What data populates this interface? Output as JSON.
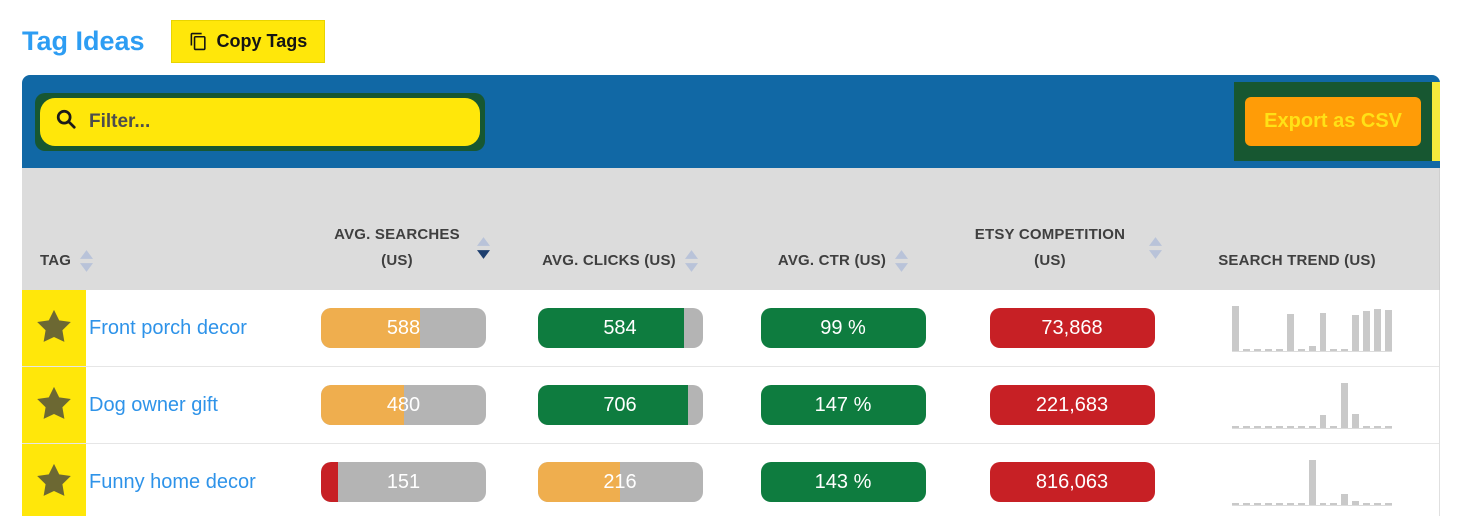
{
  "page": {
    "title": "Tag Ideas",
    "copy_tags_label": "Copy Tags"
  },
  "toolbar": {
    "filter_placeholder": "Filter...",
    "export_label": "Export as CSV"
  },
  "table": {
    "columns": [
      {
        "id": "tag",
        "label": "TAG",
        "sortable": true,
        "sort": "none"
      },
      {
        "id": "avg-searches",
        "label": "AVG. SEARCHES (US)",
        "sortable": true,
        "sort": "desc"
      },
      {
        "id": "avg-clicks",
        "label": "AVG. CLICKS (US)",
        "sortable": true,
        "sort": "none"
      },
      {
        "id": "avg-ctr",
        "label": "AVG. CTR (US)",
        "sortable": true,
        "sort": "none"
      },
      {
        "id": "competition",
        "label": "ETSY COMPETITION (US)",
        "sortable": true,
        "sort": "none"
      },
      {
        "id": "trend",
        "label": "SEARCH TREND (US)",
        "sortable": false,
        "sort": "none"
      }
    ],
    "rows": [
      {
        "tag": "Front porch decor",
        "avg_searches": {
          "value": "588",
          "fill_pct": 60,
          "color": "amber"
        },
        "avg_clicks": {
          "value": "584",
          "fill_pct": 89,
          "color": "green"
        },
        "avg_ctr": {
          "value": "99 %",
          "color": "green"
        },
        "competition": {
          "value": "73,868",
          "color": "red"
        },
        "trend": [
          100,
          4,
          2,
          2,
          2,
          83,
          2,
          12,
          85,
          3,
          2,
          79,
          88,
          93,
          90
        ]
      },
      {
        "tag": "Dog owner gift",
        "avg_searches": {
          "value": "480",
          "fill_pct": 50,
          "color": "amber"
        },
        "avg_clicks": {
          "value": "706",
          "fill_pct": 91,
          "color": "green"
        },
        "avg_ctr": {
          "value": "147 %",
          "color": "green"
        },
        "competition": {
          "value": "221,683",
          "color": "red"
        },
        "trend": [
          2,
          2,
          2,
          2,
          2,
          2,
          2,
          2,
          28,
          2,
          100,
          31,
          2,
          2,
          2
        ]
      },
      {
        "tag": "Funny home decor",
        "avg_searches": {
          "value": "151",
          "fill_pct": 10,
          "color": "red"
        },
        "avg_clicks": {
          "value": "216",
          "fill_pct": 50,
          "color": "amber"
        },
        "avg_ctr": {
          "value": "143 %",
          "color": "green"
        },
        "competition": {
          "value": "816,063",
          "color": "red"
        },
        "trend": [
          2,
          2,
          2,
          2,
          2,
          2,
          2,
          100,
          2,
          2,
          24,
          8,
          2,
          2,
          2
        ]
      }
    ]
  },
  "chart_data": {
    "type": "bar",
    "note": "search trend sparklines per tag, 15 periods, relative heights 0-100",
    "series": [
      {
        "name": "Front porch decor",
        "values": [
          100,
          4,
          2,
          2,
          2,
          83,
          2,
          12,
          85,
          3,
          2,
          79,
          88,
          93,
          90
        ]
      },
      {
        "name": "Dog owner gift",
        "values": [
          2,
          2,
          2,
          2,
          2,
          2,
          2,
          2,
          28,
          2,
          100,
          31,
          2,
          2,
          2
        ]
      },
      {
        "name": "Funny home decor",
        "values": [
          2,
          2,
          2,
          2,
          2,
          2,
          2,
          100,
          2,
          2,
          24,
          8,
          2,
          2,
          2
        ]
      }
    ]
  },
  "colors": {
    "toolbar_blue": "#1168a5",
    "title_blue": "#2d9df3",
    "link_blue": "#2e93e9",
    "highlight_yellow": "#ffe70a",
    "annotation_green": "#175731",
    "export_orange": "#ff9c07",
    "export_text_yellow": "#ffe116",
    "amber": "#efae4e",
    "green": "#0e7c3f",
    "red": "#c72025",
    "bar_gray": "#b4b4b4",
    "header_gray": "#dcdcdc",
    "star_olive": "#6c6833",
    "sort_inactive": "#b9c3d9",
    "sort_active": "#1d3e6e",
    "spark_gray": "#c9c9c9"
  }
}
